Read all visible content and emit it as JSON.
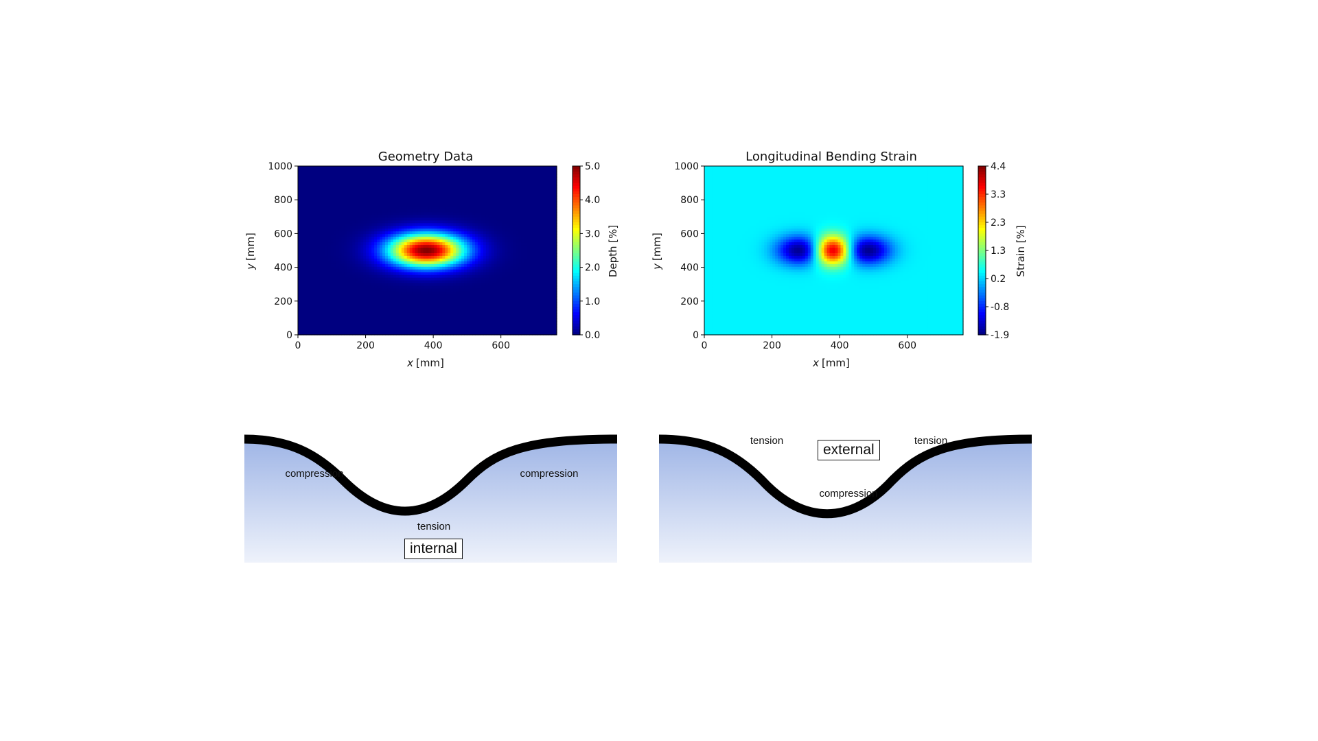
{
  "chart_data": [
    {
      "type": "heatmap",
      "title": "Geometry Data",
      "xlabel_var": "x",
      "xlabel_unit": "[mm]",
      "ylabel_var": "y",
      "ylabel_unit": "[mm]",
      "xlim": [
        0,
        765
      ],
      "ylim": [
        0,
        1000
      ],
      "xticks": [
        0,
        200,
        400,
        600
      ],
      "yticks": [
        0,
        200,
        400,
        600,
        800,
        1000
      ],
      "colorbar": {
        "label": "Depth [%]",
        "min": 0.0,
        "max": 5.0,
        "ticks": [
          "0.0",
          "1.0",
          "2.0",
          "3.0",
          "4.0",
          "5.0"
        ],
        "colormap": "jet"
      },
      "field": {
        "description": "single gaussian depression",
        "center": [
          380,
          500
        ],
        "sigma": [
          80,
          70
        ],
        "peak": 5.0,
        "background": 0.0
      }
    },
    {
      "type": "heatmap",
      "title": "Longitudinal Bending Strain",
      "xlabel_var": "x",
      "xlabel_unit": "[mm]",
      "ylabel_var": "y",
      "ylabel_unit": "[mm]",
      "xlim": [
        0,
        765
      ],
      "ylim": [
        0,
        1000
      ],
      "xticks": [
        0,
        200,
        400,
        600
      ],
      "yticks": [
        0,
        200,
        400,
        600,
        800,
        1000
      ],
      "colorbar": {
        "label": "Strain [%]",
        "min": -1.9,
        "max": 4.4,
        "ticks": [
          "-1.9",
          "-0.8",
          "0.2",
          "1.3",
          "2.3",
          "3.3",
          "4.4"
        ],
        "colormap": "jet"
      },
      "field": {
        "description": "central tension peak flanked by two compression lobes",
        "background": 0.4,
        "peaks": [
          {
            "center": [
              380,
              500
            ],
            "value": 4.4
          },
          {
            "center": [
              285,
              500
            ],
            "value": -1.9
          },
          {
            "center": [
              480,
              500
            ],
            "value": -1.9
          }
        ]
      }
    }
  ],
  "diagrams": {
    "internal": {
      "box_label": "internal",
      "labels": {
        "left": "compression",
        "right": "compression",
        "bottom": "tension"
      }
    },
    "external": {
      "box_label": "external",
      "labels": {
        "left": "tension",
        "right": "tension",
        "bottom": "compression"
      }
    }
  },
  "colors": {
    "pipe": "#000000",
    "ground": "#a9bde8",
    "ground_light": "#eef2fb"
  }
}
